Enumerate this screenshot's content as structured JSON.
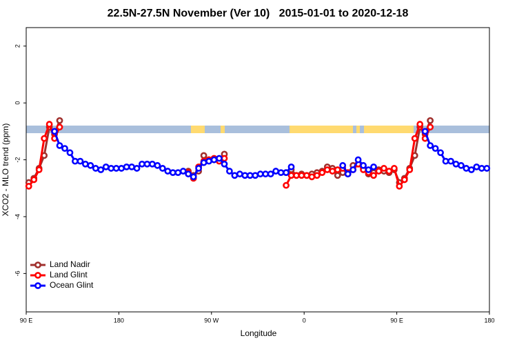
{
  "chart_data": {
    "type": "line",
    "title": "22.5N-27.5N November (Ver 10)   2015-01-01 to 2020-12-18",
    "x_label": "Longitude",
    "y_label": "XCO2 - MLO trend (ppm)",
    "xlim": [
      90,
      540
    ],
    "xticks": [
      {
        "value": 90,
        "label": "90 E"
      },
      180,
      {
        "value": 270,
        "label": "90 W"
      },
      {
        "value": 360,
        "label": "0"
      },
      {
        "value": 450,
        "label": "90 E"
      },
      {
        "value": 540,
        "label": "180"
      }
    ],
    "ylim": [
      -7.35,
      2.65
    ],
    "yticks": [
      -6,
      -4,
      -2,
      0,
      2
    ],
    "legend": "bottomleft",
    "series": [
      {
        "name": "Land Nadir",
        "color": "#a0302d",
        "x": [
          92.5,
          97.5,
          102.5,
          107.5,
          112.5,
          117.5,
          122.5,
          127.5,
          247.5,
          252.5,
          257.5,
          262.5,
          267.5,
          272.5,
          277.5,
          282.5,
          287.5,
          342.5,
          347.5,
          352.5,
          357.5,
          362.5,
          367.5,
          372.5,
          377.5,
          382.5,
          387.5,
          392.5,
          397.5,
          402.5,
          407.5,
          412.5,
          417.5,
          422.5,
          427.5,
          432.5,
          437.5,
          442.5,
          447.5,
          452.5,
          457.5,
          462.5,
          467.5,
          472.5,
          477.5,
          482.5
        ],
        "values": [
          -2.8,
          -2.65,
          -2.3,
          -1.85,
          -0.85,
          -1.1,
          -0.62,
          null,
          -2.4,
          -2.55,
          -2.4,
          -1.85,
          -2.0,
          -2.0,
          -2.0,
          -1.8,
          null,
          -2.45,
          -2.35,
          -2.55,
          -2.5,
          -2.55,
          -2.5,
          -2.45,
          -2.4,
          -2.25,
          -2.3,
          -2.55,
          -2.45,
          -2.5,
          -2.2,
          -2.15,
          -2.3,
          -2.5,
          -2.45,
          -2.35,
          -2.4,
          -2.45,
          -2.35,
          -2.8,
          -2.65,
          -2.3,
          -1.85,
          -0.85,
          -1.1,
          -0.62
        ]
      },
      {
        "name": "Land Glint",
        "color": "#ff0000",
        "x": [
          92.5,
          97.5,
          102.5,
          107.5,
          112.5,
          117.5,
          122.5,
          127.5,
          247.5,
          252.5,
          257.5,
          262.5,
          267.5,
          272.5,
          277.5,
          282.5,
          287.5,
          342.5,
          347.5,
          352.5,
          357.5,
          362.5,
          367.5,
          372.5,
          377.5,
          382.5,
          387.5,
          392.5,
          397.5,
          402.5,
          407.5,
          412.5,
          417.5,
          422.5,
          427.5,
          432.5,
          437.5,
          442.5,
          447.5,
          452.5,
          457.5,
          462.5,
          467.5,
          472.5,
          477.5,
          482.5
        ],
        "values": [
          -2.93,
          -2.7,
          -2.35,
          -1.25,
          -0.75,
          -1.25,
          -0.85,
          null,
          -2.45,
          -2.65,
          -2.25,
          -2.05,
          -2.0,
          -1.95,
          -2.05,
          -1.95,
          null,
          -2.9,
          -2.55,
          -2.55,
          -2.55,
          -2.55,
          -2.6,
          -2.55,
          -2.45,
          -2.35,
          -2.4,
          -2.35,
          -2.3,
          -2.45,
          -2.35,
          -2.15,
          -2.35,
          -2.45,
          -2.55,
          -2.4,
          -2.3,
          -2.4,
          -2.3,
          -2.93,
          -2.7,
          -2.35,
          -1.25,
          -0.75,
          -1.25,
          -0.85
        ]
      },
      {
        "name": "Ocean Glint",
        "color": "#0000ff",
        "x": [
          117.5,
          122.5,
          127.5,
          132.5,
          137.5,
          142.5,
          147.5,
          152.5,
          157.5,
          162.5,
          167.5,
          172.5,
          177.5,
          182.5,
          187.5,
          192.5,
          197.5,
          202.5,
          207.5,
          212.5,
          217.5,
          222.5,
          227.5,
          232.5,
          237.5,
          242.5,
          247.5,
          252.5,
          257.5,
          262.5,
          267.5,
          272.5,
          277.5,
          282.5,
          287.5,
          292.5,
          297.5,
          302.5,
          307.5,
          312.5,
          317.5,
          322.5,
          327.5,
          332.5,
          337.5,
          342.5,
          347.5,
          352.5,
          357.5,
          362.5,
          367.5,
          372.5,
          377.5,
          382.5,
          387.5,
          392.5,
          397.5,
          402.5,
          407.5,
          412.5,
          417.5,
          422.5,
          427.5,
          432.5,
          437.5,
          442.5,
          447.5,
          452.5,
          457.5,
          462.5,
          467.5,
          472.5,
          477.5,
          482.5,
          487.5,
          492.5,
          497.5,
          502.5,
          507.5,
          512.5,
          517.5,
          522.5,
          527.5,
          532.5,
          537.5
        ],
        "values": [
          -1.0,
          -1.5,
          -1.6,
          -1.75,
          -2.05,
          -2.05,
          -2.15,
          -2.2,
          -2.3,
          -2.35,
          -2.25,
          -2.3,
          -2.3,
          -2.3,
          -2.25,
          -2.25,
          -2.3,
          -2.15,
          -2.15,
          -2.15,
          -2.2,
          -2.3,
          -2.4,
          -2.45,
          -2.45,
          -2.4,
          -2.5,
          -2.6,
          -2.3,
          -2.1,
          -2.05,
          -2.0,
          -1.95,
          -2.15,
          -2.4,
          -2.55,
          -2.5,
          -2.55,
          -2.55,
          -2.55,
          -2.5,
          -2.5,
          -2.5,
          -2.4,
          -2.45,
          -2.45,
          -2.25,
          null,
          null,
          null,
          null,
          null,
          null,
          null,
          null,
          null,
          -2.2,
          -2.5,
          -2.35,
          -2.0,
          -2.2,
          -2.35,
          -2.25,
          null,
          null,
          null,
          null,
          null,
          null,
          null,
          null,
          null,
          -1.0,
          -1.5,
          -1.6,
          -1.75,
          -2.05,
          -2.05,
          -2.15,
          -2.2,
          -2.3,
          -2.35,
          -2.25,
          -2.3,
          -2.3
        ]
      }
    ]
  }
}
